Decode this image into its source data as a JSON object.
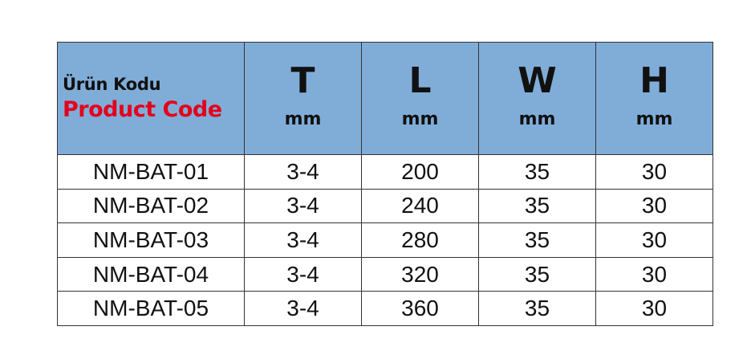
{
  "header": {
    "code_tr": "Ürün Kodu",
    "code_en": "Product Code",
    "columns": [
      {
        "dim": "T",
        "unit": "mm"
      },
      {
        "dim": "L",
        "unit": "mm"
      },
      {
        "dim": "W",
        "unit": "mm"
      },
      {
        "dim": "H",
        "unit": "mm"
      }
    ]
  },
  "rows": [
    [
      "NM-BAT-01",
      "3-4",
      "200",
      "35",
      "30"
    ],
    [
      "NM-BAT-02",
      "3-4",
      "240",
      "35",
      "30"
    ],
    [
      "NM-BAT-03",
      "3-4",
      "280",
      "35",
      "30"
    ],
    [
      "NM-BAT-04",
      "3-4",
      "320",
      "35",
      "30"
    ],
    [
      "NM-BAT-05",
      "3-4",
      "360",
      "35",
      "30"
    ]
  ],
  "colors": {
    "header_bg": "#80add8",
    "accent_red": "#e3001b"
  }
}
